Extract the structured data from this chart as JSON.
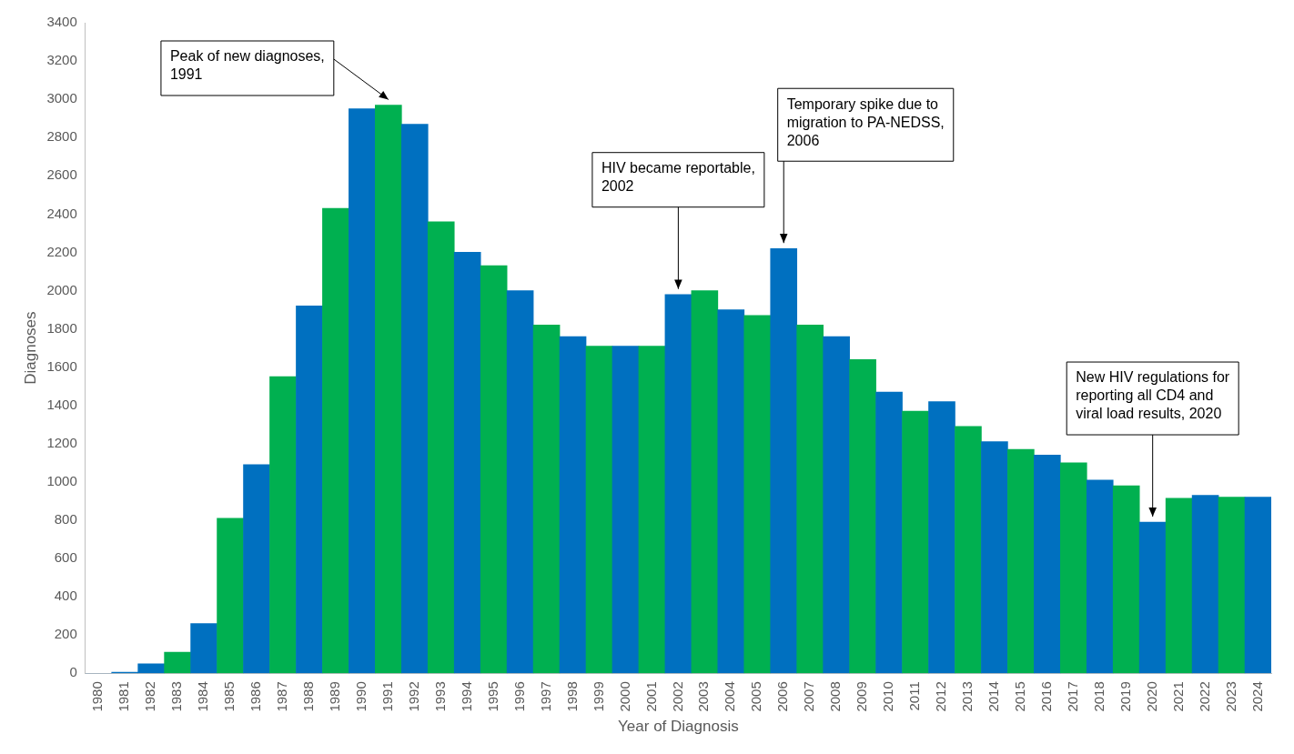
{
  "chart_data": {
    "type": "bar",
    "xlabel": "Year of Diagnosis",
    "ylabel": "Diagnoses",
    "categories": [
      "1980",
      "1981",
      "1982",
      "1983",
      "1984",
      "1985",
      "1986",
      "1987",
      "1988",
      "1989",
      "1990",
      "1991",
      "1992",
      "1993",
      "1994",
      "1995",
      "1996",
      "1997",
      "1998",
      "1999",
      "2000",
      "2001",
      "2002",
      "2003",
      "2004",
      "2005",
      "2006",
      "2007",
      "2008",
      "2009",
      "2010",
      "2011",
      "2012",
      "2013",
      "2014",
      "2015",
      "2016",
      "2017",
      "2018",
      "2019",
      "2020",
      "2021",
      "2022",
      "2023",
      "2024"
    ],
    "values": [
      0,
      5,
      50,
      110,
      260,
      810,
      1090,
      1550,
      1920,
      2430,
      2950,
      2970,
      2870,
      2360,
      2200,
      2130,
      2000,
      1820,
      1760,
      1710,
      1710,
      1710,
      1980,
      2000,
      1900,
      1870,
      2220,
      1820,
      1760,
      1640,
      1470,
      1370,
      1420,
      1290,
      1210,
      1170,
      1140,
      1100,
      1010,
      980,
      790,
      915,
      930,
      920,
      920
    ],
    "colors": [
      "#0070c0",
      "#0070c0",
      "#0070c0",
      "#00b050",
      "#0070c0",
      "#00b050",
      "#0070c0",
      "#00b050",
      "#0070c0",
      "#00b050",
      "#0070c0",
      "#00b050",
      "#0070c0",
      "#00b050",
      "#0070c0",
      "#00b050",
      "#0070c0",
      "#00b050",
      "#0070c0",
      "#00b050",
      "#0070c0",
      "#00b050",
      "#0070c0",
      "#00b050",
      "#0070c0",
      "#00b050",
      "#0070c0",
      "#00b050",
      "#0070c0",
      "#00b050",
      "#0070c0",
      "#00b050",
      "#0070c0",
      "#00b050",
      "#0070c0",
      "#00b050",
      "#0070c0",
      "#00b050",
      "#0070c0",
      "#00b050",
      "#0070c0",
      "#00b050",
      "#0070c0",
      "#00b050",
      "#0070c0"
    ],
    "ylim": [
      0,
      3400
    ],
    "yticks": [
      0,
      200,
      400,
      600,
      800,
      1000,
      1200,
      1400,
      1600,
      1800,
      2000,
      2200,
      2400,
      2600,
      2800,
      3000,
      3200,
      3400
    ],
    "grid": false,
    "legend": false,
    "annotations": [
      {
        "text": "Peak of new diagnoses, 1991",
        "x": "1991",
        "y": 2970
      },
      {
        "text": "HIV became reportable, 2002",
        "x": "2002",
        "y": 1980
      },
      {
        "text": "Temporary spike due to migration to PA-NEDSS, 2006",
        "x": "2006",
        "y": 2220
      },
      {
        "text": "New HIV regulations for reporting all CD4 and viral load results, 2020",
        "x": "2020",
        "y": 790
      }
    ]
  }
}
